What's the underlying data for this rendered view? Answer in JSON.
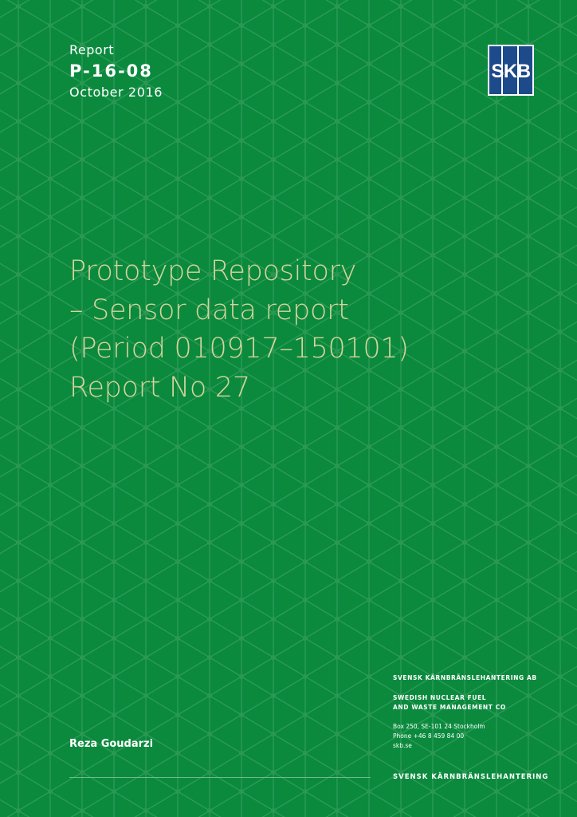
{
  "header": {
    "label": "Report",
    "report_number": "P-16-08",
    "date": "October 2016"
  },
  "logo": {
    "text": "SKB",
    "color": "#1d4a8a"
  },
  "title": {
    "lines": [
      "Prototype Repository",
      "– Sensor data report",
      "(Period 010917–150101)",
      "Report No 27"
    ]
  },
  "author": "Reza Goudarzi",
  "publisher": {
    "name_sv": "SVENSK KÄRNBRÄNSLEHANTERING AB",
    "name_en_1": "SWEDISH NUCLEAR FUEL",
    "name_en_2": "AND WASTE MANAGEMENT CO",
    "address": "Box 250, SE-101 24 Stockholm",
    "phone": "Phone +46 8 459 84 00",
    "web": "skb.se"
  },
  "footer": "SVENSK KÄRNBRÄNSLEHANTERING",
  "colors": {
    "background": "#0b8a3e",
    "title": "#d6d49c"
  }
}
